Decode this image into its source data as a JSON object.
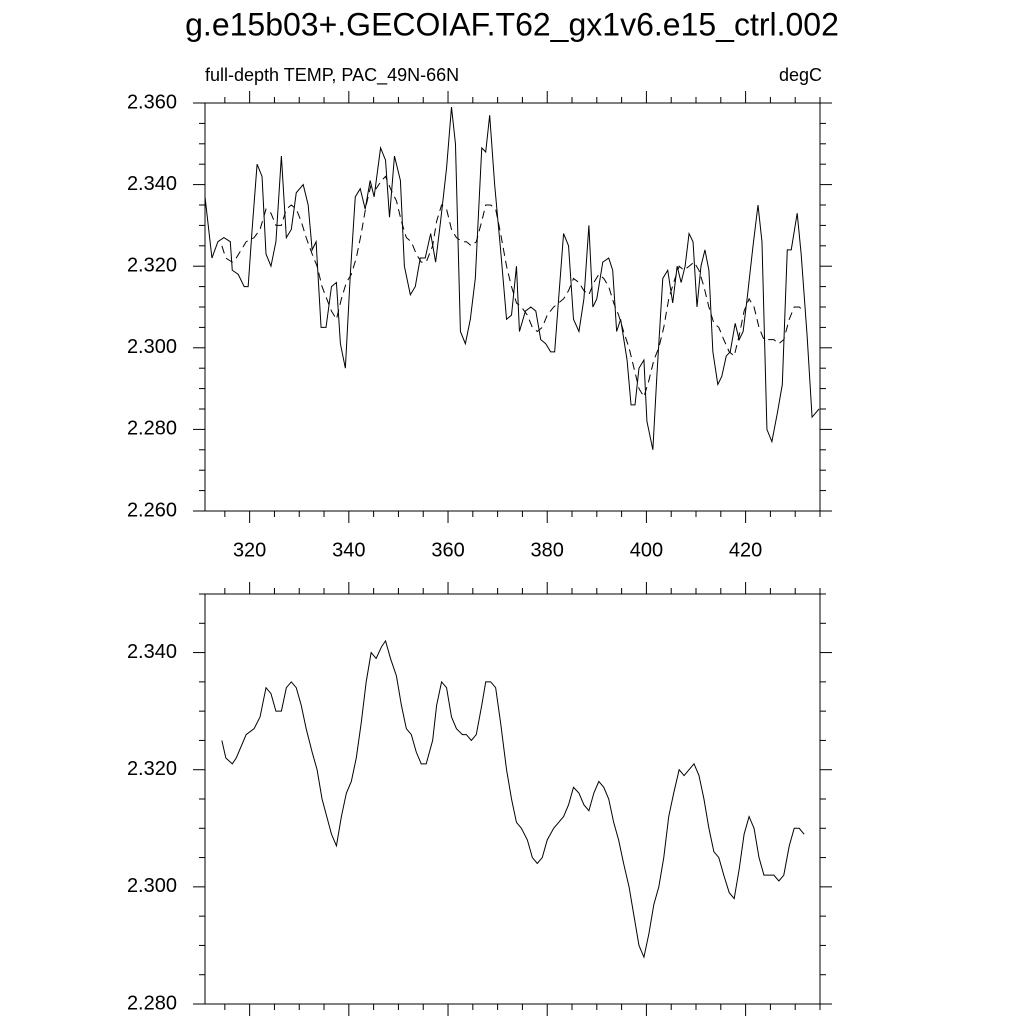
{
  "title": "g.e15b03+.GECOIAF.T62_gx1v6.e15_ctrl.002",
  "chart_data": [
    {
      "type": "line",
      "subtitle_left": "full-depth TEMP, PAC_49N-66N",
      "subtitle_right": "degC",
      "xlim": [
        311,
        435
      ],
      "xticks": [
        320,
        340,
        360,
        380,
        400,
        420
      ],
      "ylim": [
        2.26,
        2.36
      ],
      "yticks": [
        {
          "value": 2.26,
          "label": "2.260"
        },
        {
          "value": 2.28,
          "label": "2.280"
        },
        {
          "value": 2.3,
          "label": "2.300"
        },
        {
          "value": 2.32,
          "label": "2.320"
        },
        {
          "value": 2.34,
          "label": "2.340"
        },
        {
          "value": 2.36,
          "label": "2.360"
        }
      ],
      "series": [
        {
          "color": "#000000",
          "dash": "solid",
          "x": [
            311.0,
            312.4,
            313.6,
            314.8,
            316.1,
            316.5,
            317.7,
            318.9,
            319.7,
            320.5,
            321.5,
            322.5,
            323.3,
            324.3,
            325.3,
            326.4,
            327.4,
            328.4,
            329.4,
            330.8,
            331.8,
            332.6,
            333.4,
            334.4,
            335.4,
            336.5,
            337.5,
            338.3,
            339.3,
            340.3,
            341.3,
            342.3,
            343.3,
            344.3,
            345.1,
            346.4,
            347.4,
            348.2,
            349.2,
            350.4,
            351.2,
            352.4,
            353.4,
            354.4,
            355.4,
            356.5,
            357.5,
            358.5,
            359.7,
            360.7,
            361.5,
            362.5,
            363.5,
            364.5,
            365.5,
            366.8,
            367.6,
            368.4,
            369.4,
            370.6,
            371.8,
            372.8,
            373.8,
            374.4,
            375.6,
            376.7,
            377.7,
            378.7,
            379.7,
            380.7,
            381.5,
            382.3,
            383.3,
            384.3,
            385.3,
            386.4,
            387.4,
            388.4,
            389.2,
            390.0,
            391.2,
            392.4,
            393.2,
            394.0,
            394.8,
            396.1,
            396.9,
            397.7,
            398.5,
            399.5,
            400.1,
            401.3,
            402.1,
            403.3,
            404.3,
            405.3,
            406.2,
            407.0,
            407.8,
            408.6,
            409.4,
            410.2,
            411.0,
            411.8,
            412.6,
            413.4,
            414.4,
            415.2,
            416.1,
            416.9,
            417.9,
            418.7,
            419.5,
            420.3,
            421.5,
            422.5,
            423.3,
            424.3,
            425.3,
            426.4,
            427.4,
            428.4,
            429.2,
            430.4,
            431.2,
            432.4,
            433.4,
            434.8
          ],
          "values": [
            2.337,
            2.322,
            2.326,
            2.327,
            2.326,
            2.319,
            2.318,
            2.315,
            2.315,
            2.329,
            2.345,
            2.342,
            2.323,
            2.32,
            2.326,
            2.347,
            2.327,
            2.329,
            2.338,
            2.34,
            2.335,
            2.324,
            2.326,
            2.305,
            2.305,
            2.315,
            2.316,
            2.301,
            2.295,
            2.318,
            2.337,
            2.339,
            2.334,
            2.341,
            2.337,
            2.349,
            2.346,
            2.332,
            2.347,
            2.341,
            2.32,
            2.313,
            2.315,
            2.322,
            2.322,
            2.328,
            2.321,
            2.331,
            2.344,
            2.359,
            2.35,
            2.304,
            2.301,
            2.307,
            2.317,
            2.349,
            2.348,
            2.357,
            2.34,
            2.324,
            2.307,
            2.308,
            2.32,
            2.304,
            2.309,
            2.31,
            2.309,
            2.302,
            2.301,
            2.299,
            2.299,
            2.312,
            2.328,
            2.325,
            2.307,
            2.304,
            2.312,
            2.33,
            2.31,
            2.312,
            2.321,
            2.322,
            2.319,
            2.304,
            2.307,
            2.297,
            2.286,
            2.286,
            2.295,
            2.297,
            2.282,
            2.275,
            2.293,
            2.317,
            2.319,
            2.311,
            2.32,
            2.316,
            2.32,
            2.328,
            2.326,
            2.31,
            2.32,
            2.324,
            2.319,
            2.299,
            2.291,
            2.293,
            2.298,
            2.299,
            2.306,
            2.302,
            2.304,
            2.312,
            2.325,
            2.335,
            2.326,
            2.28,
            2.277,
            2.284,
            2.291,
            2.324,
            2.324,
            2.333,
            2.323,
            2.303,
            2.283,
            2.285
          ]
        },
        {
          "color": "#000000",
          "dash": "dashed",
          "x": [
            314.4,
            315.2,
            316.5,
            317.3,
            319.3,
            320.9,
            322.1,
            323.3,
            324.3,
            325.3,
            326.4,
            327.4,
            328.4,
            329.4,
            330.4,
            331.4,
            332.6,
            333.6,
            334.6,
            336.5,
            337.5,
            338.5,
            339.5,
            340.5,
            341.5,
            342.5,
            343.5,
            344.5,
            345.5,
            346.6,
            347.4,
            348.4,
            349.6,
            350.6,
            351.6,
            352.6,
            353.6,
            354.6,
            355.6,
            356.9,
            357.7,
            358.7,
            359.7,
            360.7,
            361.7,
            362.9,
            363.7,
            364.7,
            365.7,
            366.8,
            367.6,
            368.6,
            369.6,
            370.6,
            371.8,
            372.8,
            373.8,
            374.8,
            376.0,
            377.0,
            378.0,
            379.0,
            380.0,
            381.3,
            382.3,
            383.3,
            384.3,
            385.3,
            386.4,
            387.4,
            388.4,
            389.4,
            390.4,
            391.4,
            392.4,
            393.4,
            394.4,
            395.4,
            396.5,
            397.5,
            398.5,
            399.5,
            400.5,
            401.5,
            402.5,
            403.5,
            404.5,
            405.5,
            406.6,
            407.6,
            408.6,
            409.6,
            410.6,
            411.6,
            412.6,
            413.6,
            414.6,
            415.6,
            416.7,
            417.7,
            418.7,
            419.7,
            420.7,
            421.7,
            422.7,
            423.7,
            424.7,
            425.7,
            426.7,
            427.7,
            428.8,
            429.8,
            430.8,
            431.8
          ],
          "values": [
            2.325,
            2.322,
            2.321,
            2.322,
            2.326,
            2.327,
            2.329,
            2.334,
            2.333,
            2.33,
            2.33,
            2.334,
            2.335,
            2.334,
            2.331,
            2.327,
            2.323,
            2.32,
            2.315,
            2.309,
            2.307,
            2.312,
            2.316,
            2.318,
            2.322,
            2.328,
            2.335,
            2.34,
            2.339,
            2.341,
            2.342,
            2.339,
            2.336,
            2.331,
            2.327,
            2.326,
            2.323,
            2.321,
            2.321,
            2.325,
            2.331,
            2.335,
            2.334,
            2.329,
            2.327,
            2.326,
            2.326,
            2.325,
            2.326,
            2.331,
            2.335,
            2.335,
            2.334,
            2.328,
            2.32,
            2.315,
            2.311,
            2.31,
            2.308,
            2.305,
            2.304,
            2.305,
            2.308,
            2.31,
            2.311,
            2.312,
            2.314,
            2.317,
            2.316,
            2.314,
            2.313,
            2.316,
            2.318,
            2.317,
            2.315,
            2.311,
            2.308,
            2.304,
            2.3,
            2.295,
            2.29,
            2.288,
            2.292,
            2.297,
            2.3,
            2.305,
            2.312,
            2.316,
            2.32,
            2.319,
            2.32,
            2.321,
            2.319,
            2.315,
            2.31,
            2.306,
            2.305,
            2.302,
            2.299,
            2.298,
            2.303,
            2.309,
            2.312,
            2.31,
            2.305,
            2.302,
            2.302,
            2.302,
            2.301,
            2.302,
            2.307,
            2.31,
            2.31,
            2.309
          ]
        }
      ]
    },
    {
      "type": "line",
      "xlim": [
        311,
        435
      ],
      "xticks": [
        320,
        340,
        360,
        380,
        400,
        420
      ],
      "ylim": [
        2.28,
        2.35
      ],
      "yticks": [
        {
          "value": 2.28,
          "label": "2.280"
        },
        {
          "value": 2.3,
          "label": "2.300"
        },
        {
          "value": 2.32,
          "label": "2.320"
        },
        {
          "value": 2.34,
          "label": "2.340"
        }
      ],
      "series": [
        {
          "color": "#000000",
          "dash": "solid",
          "x": [
            314.4,
            315.2,
            316.5,
            317.3,
            319.3,
            320.9,
            322.1,
            323.3,
            324.3,
            325.3,
            326.4,
            327.4,
            328.4,
            329.4,
            330.4,
            331.4,
            332.6,
            333.6,
            334.6,
            336.5,
            337.5,
            338.5,
            339.5,
            340.5,
            341.5,
            342.5,
            343.5,
            344.5,
            345.5,
            346.6,
            347.4,
            348.4,
            349.6,
            350.6,
            351.6,
            352.6,
            353.6,
            354.6,
            355.6,
            356.9,
            357.7,
            358.7,
            359.7,
            360.7,
            361.7,
            362.9,
            363.7,
            364.7,
            365.7,
            366.8,
            367.6,
            368.6,
            369.6,
            370.6,
            371.8,
            372.8,
            373.8,
            374.8,
            376.0,
            377.0,
            378.0,
            379.0,
            380.0,
            381.3,
            382.3,
            383.3,
            384.3,
            385.3,
            386.4,
            387.4,
            388.4,
            389.4,
            390.4,
            391.4,
            392.4,
            393.4,
            394.4,
            395.4,
            396.5,
            397.5,
            398.5,
            399.5,
            400.5,
            401.5,
            402.5,
            403.5,
            404.5,
            405.5,
            406.6,
            407.6,
            408.6,
            409.6,
            410.6,
            411.6,
            412.6,
            413.6,
            414.6,
            415.6,
            416.7,
            417.7,
            418.7,
            419.7,
            420.7,
            421.7,
            422.7,
            423.7,
            424.7,
            425.7,
            426.7,
            427.7,
            428.8,
            429.8,
            430.8,
            431.8
          ],
          "values": [
            2.325,
            2.322,
            2.321,
            2.322,
            2.326,
            2.327,
            2.329,
            2.334,
            2.333,
            2.33,
            2.33,
            2.334,
            2.335,
            2.334,
            2.331,
            2.327,
            2.323,
            2.32,
            2.315,
            2.309,
            2.307,
            2.312,
            2.316,
            2.318,
            2.322,
            2.328,
            2.335,
            2.34,
            2.339,
            2.341,
            2.342,
            2.339,
            2.336,
            2.331,
            2.327,
            2.326,
            2.323,
            2.321,
            2.321,
            2.325,
            2.331,
            2.335,
            2.334,
            2.329,
            2.327,
            2.326,
            2.326,
            2.325,
            2.326,
            2.331,
            2.335,
            2.335,
            2.334,
            2.328,
            2.32,
            2.315,
            2.311,
            2.31,
            2.308,
            2.305,
            2.304,
            2.305,
            2.308,
            2.31,
            2.311,
            2.312,
            2.314,
            2.317,
            2.316,
            2.314,
            2.313,
            2.316,
            2.318,
            2.317,
            2.315,
            2.311,
            2.308,
            2.304,
            2.3,
            2.295,
            2.29,
            2.288,
            2.292,
            2.297,
            2.3,
            2.305,
            2.312,
            2.316,
            2.32,
            2.319,
            2.32,
            2.321,
            2.319,
            2.315,
            2.31,
            2.306,
            2.305,
            2.302,
            2.299,
            2.298,
            2.303,
            2.309,
            2.312,
            2.31,
            2.305,
            2.302,
            2.302,
            2.302,
            2.301,
            2.302,
            2.307,
            2.31,
            2.31,
            2.309
          ]
        }
      ]
    }
  ]
}
